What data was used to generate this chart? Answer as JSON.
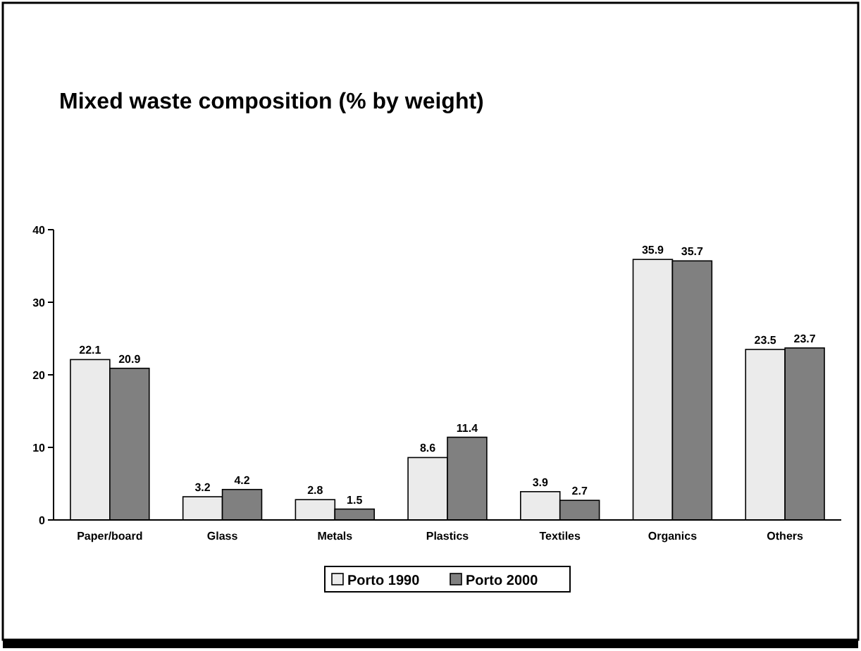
{
  "chart_data": {
    "type": "bar",
    "title": "Mixed waste composition (% by weight)",
    "categories": [
      "Paper/board",
      "Glass",
      "Metals",
      "Plastics",
      "Textiles",
      "Organics",
      "Others"
    ],
    "series": [
      {
        "name": "Porto 1990",
        "color": "#ebebeb",
        "values": [
          22.1,
          3.2,
          2.8,
          8.6,
          3.9,
          35.9,
          23.5
        ]
      },
      {
        "name": "Porto 2000",
        "color": "#808080",
        "values": [
          20.9,
          4.2,
          1.5,
          11.4,
          2.7,
          35.7,
          23.7
        ]
      }
    ],
    "ylim": [
      0,
      40
    ],
    "yticks": [
      0,
      10,
      20,
      30,
      40
    ],
    "grid": false,
    "data_labels": true,
    "legend": "bottom"
  }
}
